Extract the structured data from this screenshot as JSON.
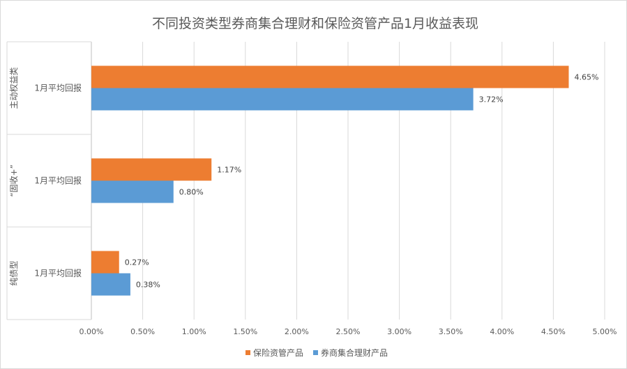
{
  "chart_data": {
    "type": "bar",
    "orientation": "horizontal",
    "title": "不同投资类型券商集合理财和保险资管产品1月收益表现",
    "groups": [
      "主动权益类",
      "“固收+”",
      "纯债型"
    ],
    "categories": [
      "1月平均回报",
      "1月平均回报",
      "1月平均回报"
    ],
    "series": [
      {
        "name": "保险资管产品",
        "color": "#ED7D31",
        "values": [
          4.65,
          1.17,
          0.27
        ],
        "labels": [
          "4.65%",
          "1.17%",
          "0.27%"
        ]
      },
      {
        "name": "券商集合理财产品",
        "color": "#5B9BD5",
        "values": [
          3.72,
          0.8,
          0.38
        ],
        "labels": [
          "3.72%",
          "0.80%",
          "0.38%"
        ]
      }
    ],
    "xlim": [
      0,
      5
    ],
    "xticks": [
      "0.00%",
      "0.50%",
      "1.00%",
      "1.50%",
      "2.00%",
      "2.50%",
      "3.00%",
      "3.50%",
      "4.00%",
      "4.50%",
      "5.00%"
    ],
    "grid": true,
    "legend": "bottom"
  }
}
